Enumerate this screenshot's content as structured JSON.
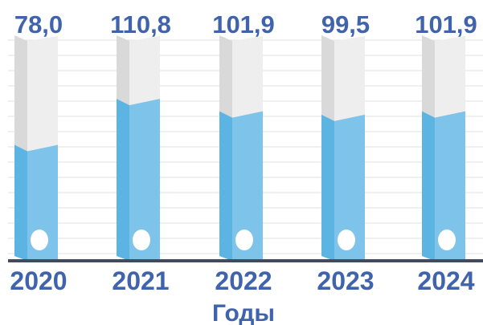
{
  "chart_data": {
    "type": "bar",
    "categories": [
      "2020",
      "2021",
      "2022",
      "2023",
      "2024"
    ],
    "values": [
      78.0,
      110.8,
      101.9,
      99.5,
      101.9
    ],
    "value_labels": [
      "78,0",
      "110,8",
      "101,9",
      "99,5",
      "101,9"
    ],
    "xlabel": "Годы",
    "ylabel": "",
    "ylim": [
      0,
      160
    ],
    "grid": true,
    "legend": "none",
    "colors": {
      "fill_front": "#7ec4ea",
      "fill_side": "#5bb4e2",
      "fill_top": "#a9d8f3",
      "empty_front": "#eeeeee",
      "empty_side": "#d9d9d9",
      "empty_top": "#f6f6f6",
      "label": "#3f63ad",
      "baseline": "#444a5e",
      "grid": "#e2e2e2"
    }
  }
}
